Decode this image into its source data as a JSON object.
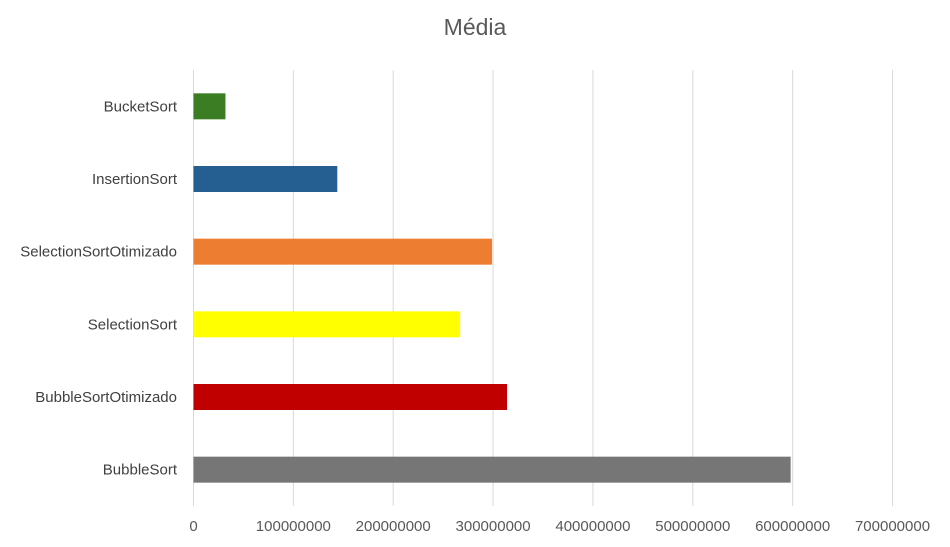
{
  "chart_data": {
    "type": "bar",
    "orientation": "horizontal",
    "title": "Média",
    "xlabel": "",
    "ylabel": "",
    "categories": [
      "BubbleSort",
      "BubbleSortOtimizado",
      "SelectionSort",
      "SelectionSortOtimizado",
      "InsertionSort",
      "BucketSort"
    ],
    "values": [
      598000000,
      314000000,
      267000000,
      299000000,
      144000000,
      32000000
    ],
    "bar_colors": [
      "#767676",
      "#C00000",
      "#FFFF00",
      "#ED7D31",
      "#255E91",
      "#3A7D22"
    ],
    "xlim": [
      0,
      700000000
    ],
    "xticks": [
      0,
      100000000,
      200000000,
      300000000,
      400000000,
      500000000,
      600000000,
      700000000
    ],
    "xtick_labels": [
      "0",
      "100000000",
      "200000000",
      "300000000",
      "400000000",
      "500000000",
      "600000000",
      "700000000"
    ],
    "grid": true,
    "legend": "none"
  },
  "colors": {
    "gridline": "#D9D9D9",
    "text": "#595959"
  }
}
